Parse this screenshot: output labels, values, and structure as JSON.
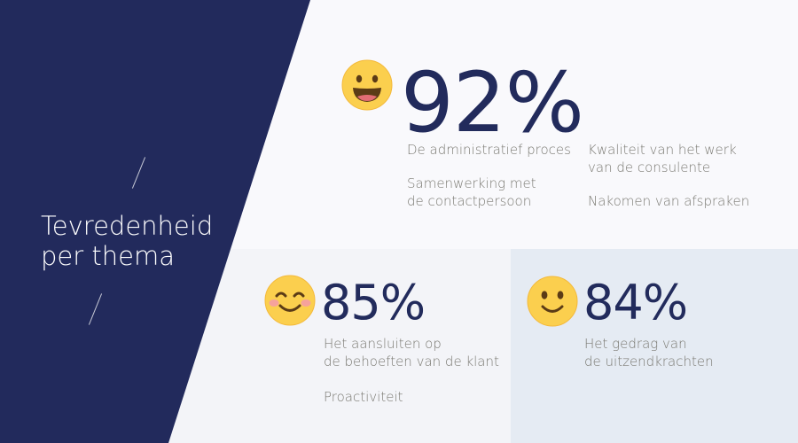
{
  "sidebar": {
    "title_line1": "Tevredenheid",
    "title_line2": "per thema",
    "navy_color": "#222a5c"
  },
  "top": {
    "emoji": "grinning-face-icon",
    "percent": "92%",
    "items": [
      {
        "line1": "De administratief proces",
        "line2": ""
      },
      {
        "line1": "Kwaliteit van het werk",
        "line2": "van de consulente"
      },
      {
        "line1": "Samenwerking met",
        "line2": "de contactpersoon"
      },
      {
        "line1": "Nakomen van afspraken",
        "line2": ""
      }
    ]
  },
  "bottom_left": {
    "emoji": "smiling-blush-face-icon",
    "percent": "85%",
    "items": [
      {
        "line1": "Het aansluiten op",
        "line2": "de behoeften van de klant"
      },
      {
        "line1": "Proactiviteit",
        "line2": ""
      }
    ]
  },
  "bottom_right": {
    "emoji": "slightly-smiling-face-icon",
    "percent": "84%",
    "items": [
      {
        "line1": "Het gedrag van",
        "line2": "de uitzendkrachten"
      }
    ]
  }
}
